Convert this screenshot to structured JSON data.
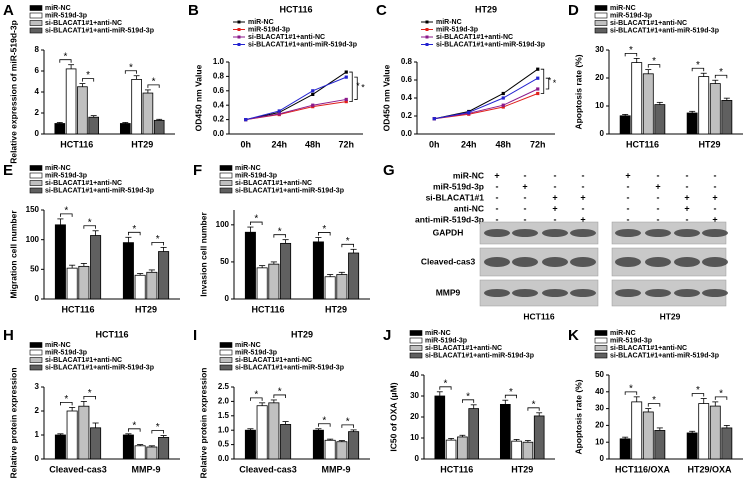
{
  "chart_data": [
    {
      "type": "bar",
      "panel": "A",
      "ylabel": "Relative expression of miR-519d-3p",
      "categories": [
        "HCT116",
        "HT29"
      ],
      "ylim": [
        0,
        8
      ],
      "yticks": [
        0,
        2,
        4,
        6,
        8
      ],
      "series": [
        {
          "name": "miR-NC",
          "color": "#000000",
          "values": [
            1.0,
            1.0
          ],
          "errors": [
            0.1,
            0.1
          ]
        },
        {
          "name": "miR-519d-3p",
          "color": "#ffffff",
          "values": [
            6.2,
            5.2
          ],
          "errors": [
            0.4,
            0.35
          ]
        },
        {
          "name": "si-BLACAT1#1+anti-NC",
          "color": "#c0c0c0",
          "values": [
            4.5,
            3.9
          ],
          "errors": [
            0.3,
            0.3
          ]
        },
        {
          "name": "si-BLACAT1#1+anti-miR-519d-3p",
          "color": "#606060",
          "values": [
            1.6,
            1.3
          ],
          "errors": [
            0.15,
            0.1
          ]
        }
      ],
      "brackets": [
        {
          "category": 0,
          "from": 0,
          "to": 1,
          "label": "*"
        },
        {
          "category": 0,
          "from": 2,
          "to": 3,
          "label": "*"
        },
        {
          "category": 1,
          "from": 0,
          "to": 1,
          "label": "*"
        },
        {
          "category": 1,
          "from": 2,
          "to": 3,
          "label": "*"
        }
      ]
    },
    {
      "type": "line",
      "panel": "B",
      "title": "HCT116",
      "ylabel": "OD450 nm Value",
      "categories": [
        "0h",
        "24h",
        "48h",
        "72h"
      ],
      "ylim": [
        0,
        1.0
      ],
      "yticks": [
        {
          "value": 0,
          "label": "0.0"
        },
        {
          "value": 0.2,
          "label": "0.2"
        },
        {
          "value": 0.4,
          "label": "0.4"
        },
        {
          "value": 0.6,
          "label": "0.6"
        },
        {
          "value": 0.8,
          "label": "0.8"
        },
        {
          "value": 1.0,
          "label": "1.0"
        }
      ],
      "series": [
        {
          "name": "miR-NC",
          "color": "#000000",
          "values": [
            0.2,
            0.3,
            0.55,
            0.86
          ]
        },
        {
          "name": "miR-519d-3p",
          "color": "#e0201b",
          "values": [
            0.2,
            0.27,
            0.38,
            0.45
          ]
        },
        {
          "name": "si-BLACAT1#1+anti-NC",
          "color": "#8b1a8b",
          "values": [
            0.2,
            0.28,
            0.4,
            0.48
          ]
        },
        {
          "name": "si-BLACAT1#1+anti-miR-519d-3p",
          "color": "#2323d0",
          "values": [
            0.2,
            0.32,
            0.6,
            0.79
          ]
        }
      ],
      "brackets": [
        {
          "from": 0,
          "to": 1,
          "label": "*"
        },
        {
          "from": 2,
          "to": 3,
          "label": "*"
        }
      ]
    },
    {
      "type": "line",
      "panel": "C",
      "title": "HT29",
      "ylabel": "OD450 nm Value",
      "categories": [
        "0h",
        "24h",
        "48h",
        "72h"
      ],
      "ylim": [
        0,
        0.8
      ],
      "yticks": [
        {
          "value": 0,
          "label": "0.0"
        },
        {
          "value": 0.2,
          "label": "0.2"
        },
        {
          "value": 0.4,
          "label": "0.4"
        },
        {
          "value": 0.6,
          "label": "0.6"
        },
        {
          "value": 0.8,
          "label": "0.8"
        }
      ],
      "series": [
        {
          "name": "miR-NC",
          "color": "#000000",
          "values": [
            0.17,
            0.25,
            0.45,
            0.72
          ]
        },
        {
          "name": "miR-519d-3p",
          "color": "#e0201b",
          "values": [
            0.17,
            0.22,
            0.3,
            0.45
          ]
        },
        {
          "name": "si-BLACAT1#1+anti-NC",
          "color": "#8b1a8b",
          "values": [
            0.17,
            0.23,
            0.32,
            0.5
          ]
        },
        {
          "name": "si-BLACAT1#1+anti-miR-519d-3p",
          "color": "#2323d0",
          "values": [
            0.17,
            0.24,
            0.4,
            0.62
          ]
        }
      ],
      "brackets": [
        {
          "from": 0,
          "to": 1,
          "label": "*"
        },
        {
          "from": 2,
          "to": 3,
          "label": "*"
        }
      ]
    },
    {
      "type": "bar",
      "panel": "D",
      "ylabel": "Apoptosis rate (%)",
      "categories": [
        "HCT116",
        "HT29"
      ],
      "ylim": [
        0,
        30
      ],
      "yticks": [
        0,
        10,
        20,
        30
      ],
      "series": [
        {
          "name": "miR-NC",
          "color": "#000000",
          "values": [
            6.5,
            7.5
          ],
          "errors": [
            0.5,
            0.6
          ]
        },
        {
          "name": "miR-519d-3p",
          "color": "#ffffff",
          "values": [
            25.5,
            20.5
          ],
          "errors": [
            1.5,
            1.2
          ]
        },
        {
          "name": "si-BLACAT1#1+anti-NC",
          "color": "#c0c0c0",
          "values": [
            21.5,
            18
          ],
          "errors": [
            1.5,
            1.2
          ]
        },
        {
          "name": "si-BLACAT1#1+anti-miR-519d-3p",
          "color": "#606060",
          "values": [
            10.5,
            12
          ],
          "errors": [
            0.8,
            0.8
          ]
        }
      ],
      "brackets": [
        {
          "category": 0,
          "from": 0,
          "to": 1,
          "label": "*"
        },
        {
          "category": 0,
          "from": 2,
          "to": 3,
          "label": "*"
        },
        {
          "category": 1,
          "from": 0,
          "to": 1,
          "label": "*"
        },
        {
          "category": 1,
          "from": 2,
          "to": 3,
          "label": "*"
        }
      ]
    },
    {
      "type": "bar",
      "panel": "E",
      "ylabel": "Migration cell number",
      "categories": [
        "HCT116",
        "HT29"
      ],
      "ylim": [
        0,
        150
      ],
      "yticks": [
        0,
        50,
        100,
        150
      ],
      "series": [
        {
          "name": "miR-NC",
          "color": "#000000",
          "values": [
            125,
            95
          ],
          "errors": [
            10,
            9
          ]
        },
        {
          "name": "miR-519d-3p",
          "color": "#ffffff",
          "values": [
            52,
            40
          ],
          "errors": [
            5,
            3
          ]
        },
        {
          "name": "si-BLACAT1#1+anti-NC",
          "color": "#c0c0c0",
          "values": [
            55,
            45
          ],
          "errors": [
            5,
            4
          ]
        },
        {
          "name": "si-BLACAT1#1+anti-miR-519d-3p",
          "color": "#606060",
          "values": [
            107,
            80
          ],
          "errors": [
            8,
            7
          ]
        }
      ],
      "brackets": [
        {
          "category": 0,
          "from": 0,
          "to": 1,
          "label": "*"
        },
        {
          "category": 0,
          "from": 2,
          "to": 3,
          "label": "*"
        },
        {
          "category": 1,
          "from": 0,
          "to": 1,
          "label": "*"
        },
        {
          "category": 1,
          "from": 2,
          "to": 3,
          "label": "*"
        }
      ]
    },
    {
      "type": "bar",
      "panel": "F",
      "ylabel": "Invasion cell number",
      "categories": [
        "HCT116",
        "HT29"
      ],
      "ylim": [
        0,
        120
      ],
      "yticks": [
        0,
        50,
        100
      ],
      "series": [
        {
          "name": "miR-NC",
          "color": "#000000",
          "values": [
            90,
            77
          ],
          "errors": [
            7,
            6
          ]
        },
        {
          "name": "miR-519d-3p",
          "color": "#ffffff",
          "values": [
            42,
            30
          ],
          "errors": [
            3,
            3
          ]
        },
        {
          "name": "si-BLACAT1#1+anti-NC",
          "color": "#c0c0c0",
          "values": [
            47,
            33
          ],
          "errors": [
            3,
            3
          ]
        },
        {
          "name": "si-BLACAT1#1+anti-miR-519d-3p",
          "color": "#606060",
          "values": [
            75,
            62
          ],
          "errors": [
            5,
            5
          ]
        }
      ],
      "brackets": [
        {
          "category": 0,
          "from": 0,
          "to": 1,
          "label": "*"
        },
        {
          "category": 0,
          "from": 2,
          "to": 3,
          "label": "*"
        },
        {
          "category": 1,
          "from": 0,
          "to": 1,
          "label": "*"
        },
        {
          "category": 1,
          "from": 2,
          "to": 3,
          "label": "*"
        }
      ]
    },
    {
      "type": "blot",
      "panel": "G",
      "conditions": [
        {
          "name": "miR-NC",
          "signs": [
            "+",
            "-",
            "-",
            "-"
          ]
        },
        {
          "name": "miR-519d-3p",
          "signs": [
            "-",
            "+",
            "-",
            "-"
          ]
        },
        {
          "name": "si-BLACAT1#1",
          "signs": [
            "-",
            "-",
            "+",
            "+"
          ]
        },
        {
          "name": "anti-NC",
          "signs": [
            "-",
            "-",
            "+",
            "-"
          ]
        },
        {
          "name": "anti-miR-519d-3p",
          "signs": [
            "-",
            "-",
            "-",
            "+"
          ]
        }
      ],
      "proteins": [
        "GAPDH",
        "Cleaved-cas3",
        "MMP9"
      ],
      "groups": [
        "HCT116",
        "HT29"
      ]
    },
    {
      "type": "bar",
      "panel": "H",
      "title": "HCT116",
      "ylabel": "Relative protein expression",
      "categories": [
        "Cleaved-cas3",
        "MMP-9"
      ],
      "ylim": [
        0,
        3
      ],
      "yticks": [
        0,
        1,
        2,
        3
      ],
      "series": [
        {
          "name": "miR-NC",
          "color": "#000000",
          "values": [
            1.0,
            1.0
          ],
          "errors": [
            0.05,
            0.05
          ]
        },
        {
          "name": "miR-519d-3p",
          "color": "#ffffff",
          "values": [
            2.0,
            0.55
          ],
          "errors": [
            0.15,
            0.05
          ]
        },
        {
          "name": "si-BLACAT1#1+anti-NC",
          "color": "#c0c0c0",
          "values": [
            2.2,
            0.5
          ],
          "errors": [
            0.2,
            0.05
          ]
        },
        {
          "name": "si-BLACAT1#1+anti-miR-519d-3p",
          "color": "#606060",
          "values": [
            1.3,
            0.9
          ],
          "errors": [
            0.2,
            0.08
          ]
        }
      ],
      "brackets": [
        {
          "category": 0,
          "from": 0,
          "to": 1,
          "label": "*"
        },
        {
          "category": 0,
          "from": 2,
          "to": 3,
          "label": "*"
        },
        {
          "category": 1,
          "from": 0,
          "to": 1,
          "label": "*"
        },
        {
          "category": 1,
          "from": 2,
          "to": 3,
          "label": "*"
        }
      ]
    },
    {
      "type": "bar",
      "panel": "I",
      "title": "HT29",
      "ylabel": "Relative protein expression",
      "categories": [
        "Cleaved-cas3",
        "MMP-9"
      ],
      "ylim": [
        0,
        2.5
      ],
      "yticks": [
        {
          "value": 0,
          "label": "0.0"
        },
        {
          "value": 0.5,
          "label": "0.5"
        },
        {
          "value": 1.0,
          "label": "1.0"
        },
        {
          "value": 1.5,
          "label": "1.5"
        },
        {
          "value": 2.0,
          "label": "2.0"
        },
        {
          "value": 2.5,
          "label": "2.5"
        }
      ],
      "series": [
        {
          "name": "miR-NC",
          "color": "#000000",
          "values": [
            1.0,
            1.0
          ],
          "errors": [
            0.05,
            0.05
          ]
        },
        {
          "name": "miR-519d-3p",
          "color": "#ffffff",
          "values": [
            1.85,
            0.65
          ],
          "errors": [
            0.1,
            0.04
          ]
        },
        {
          "name": "si-BLACAT1#1+anti-NC",
          "color": "#c0c0c0",
          "values": [
            1.95,
            0.6
          ],
          "errors": [
            0.1,
            0.04
          ]
        },
        {
          "name": "si-BLACAT1#1+anti-miR-519d-3p",
          "color": "#606060",
          "values": [
            1.2,
            0.95
          ],
          "errors": [
            0.1,
            0.06
          ]
        }
      ],
      "brackets": [
        {
          "category": 0,
          "from": 0,
          "to": 1,
          "label": "*"
        },
        {
          "category": 0,
          "from": 2,
          "to": 3,
          "label": "*"
        },
        {
          "category": 1,
          "from": 0,
          "to": 1,
          "label": "*"
        },
        {
          "category": 1,
          "from": 2,
          "to": 3,
          "label": "*"
        }
      ]
    },
    {
      "type": "bar",
      "panel": "J",
      "ylabel": "IC50 of OXA (μM)",
      "categories": [
        "HCT116",
        "HT29"
      ],
      "ylim": [
        0,
        40
      ],
      "yticks": [
        0,
        10,
        20,
        30,
        40
      ],
      "series": [
        {
          "name": "miR-NC",
          "color": "#000000",
          "values": [
            30,
            26
          ],
          "errors": [
            2,
            2
          ]
        },
        {
          "name": "miR-519d-3p",
          "color": "#ffffff",
          "values": [
            9,
            8.5
          ],
          "errors": [
            0.8,
            0.8
          ]
        },
        {
          "name": "si-BLACAT1#1+anti-NC",
          "color": "#c0c0c0",
          "values": [
            10.5,
            8
          ],
          "errors": [
            0.8,
            0.8
          ]
        },
        {
          "name": "si-BLACAT1#1+anti-miR-519d-3p",
          "color": "#606060",
          "values": [
            24,
            20.5
          ],
          "errors": [
            1.8,
            1.5
          ]
        }
      ],
      "brackets": [
        {
          "category": 0,
          "from": 0,
          "to": 1,
          "label": "*"
        },
        {
          "category": 0,
          "from": 2,
          "to": 3,
          "label": "*"
        },
        {
          "category": 1,
          "from": 0,
          "to": 1,
          "label": "*"
        },
        {
          "category": 1,
          "from": 2,
          "to": 3,
          "label": "*"
        }
      ]
    },
    {
      "type": "bar",
      "panel": "K",
      "ylabel": "Apoptosis rate (%)",
      "categories": [
        "HCT116/OXA",
        "HT29/OXA"
      ],
      "ylim": [
        0,
        50
      ],
      "yticks": [
        0,
        10,
        20,
        30,
        40,
        50
      ],
      "series": [
        {
          "name": "miR-NC",
          "color": "#000000",
          "values": [
            12,
            15.5
          ],
          "errors": [
            1,
            1
          ]
        },
        {
          "name": "miR-519d-3p",
          "color": "#ffffff",
          "values": [
            34,
            33
          ],
          "errors": [
            3,
            3
          ]
        },
        {
          "name": "si-BLACAT1#1+anti-NC",
          "color": "#c0c0c0",
          "values": [
            28,
            31.5
          ],
          "errors": [
            2,
            2.5
          ]
        },
        {
          "name": "si-BLACAT1#1+anti-miR-519d-3p",
          "color": "#606060",
          "values": [
            17,
            18.5
          ],
          "errors": [
            1.5,
            1.5
          ]
        }
      ],
      "brackets": [
        {
          "category": 0,
          "from": 0,
          "to": 1,
          "label": "*"
        },
        {
          "category": 0,
          "from": 2,
          "to": 3,
          "label": "*"
        },
        {
          "category": 1,
          "from": 0,
          "to": 1,
          "label": "*"
        },
        {
          "category": 1,
          "from": 2,
          "to": 3,
          "label": "*"
        }
      ]
    }
  ]
}
